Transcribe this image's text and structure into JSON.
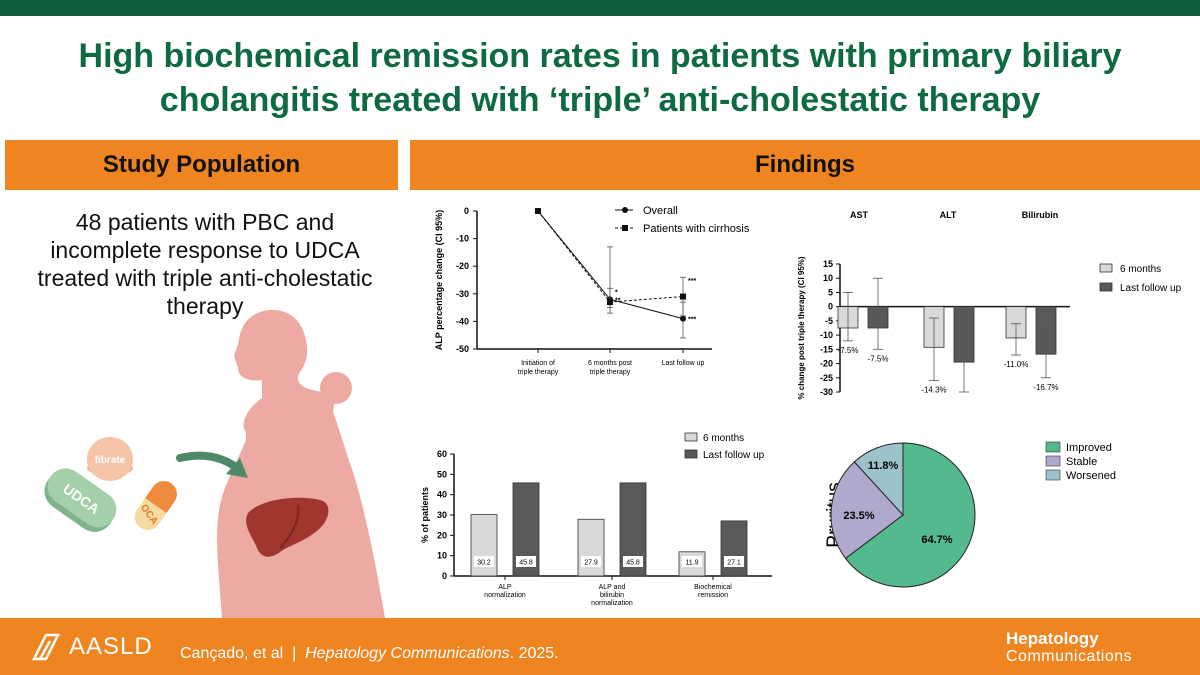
{
  "title": "High biochemical remission rates in patients with primary biliary cholangitis treated with ‘triple’ anti-cholestatic therapy",
  "left_banner": "Study Population",
  "right_banner": "Findings",
  "population_text": "48 patients with PBC and incomplete response to UDCA treated with triple anti-cholestatic therapy",
  "pills": {
    "fibrate": "fibrate",
    "udca": "UDCA",
    "oca": "OCA"
  },
  "colors": {
    "brand_green": "#0e6a40",
    "orange": "#ef8521",
    "bar_light": "#d9d9d9",
    "bar_dark": "#595959",
    "improved": "#55b98e",
    "stable": "#b1a9cd",
    "worsened": "#9cc3cc"
  },
  "footer": {
    "logo": "AASLD",
    "citation_authors": "Cançado, et al  |  ",
    "citation_journal": "Hepatology Communications",
    "citation_year": ". 2025.",
    "journal_line1": "Hepatology",
    "journal_line2": "Communications"
  },
  "chart_data": [
    {
      "type": "line",
      "ylabel": "ALP percentage change (CI 95%)",
      "categories": [
        "Initiation of triple therapy",
        "6 months post triple therapy",
        "Last follow up"
      ],
      "ylim": [
        -50,
        0
      ],
      "yticks": [
        0,
        -10,
        -20,
        -30,
        -40,
        -50
      ],
      "series": [
        {
          "name": "Overall",
          "values": [
            0,
            -32,
            -39
          ],
          "ci": [
            [
              0,
              0
            ],
            [
              -35,
              -13
            ],
            [
              -46,
              -33
            ]
          ],
          "annotations": [
            "",
            "**",
            "***"
          ]
        },
        {
          "name": "Patients with cirrhosis",
          "values": [
            0,
            -33,
            -31
          ],
          "ci": [
            [
              0,
              0
            ],
            [
              -37,
              -28
            ],
            [
              -38,
              -24
            ]
          ],
          "annotations": [
            "",
            "*",
            "***"
          ]
        }
      ]
    },
    {
      "type": "bar",
      "ylabel": "% change post triple therapy (CI 95%)",
      "categories": [
        "AST",
        "ALT",
        "Bilirubin"
      ],
      "ylim": [
        -30,
        15
      ],
      "yticks": [
        15,
        10,
        5,
        0,
        -5,
        -10,
        -15,
        -20,
        -25,
        -30
      ],
      "series": [
        {
          "name": "6 months",
          "values": [
            -7.5,
            -14.3,
            -11.0
          ],
          "labels": [
            "-7.5%",
            "-14.3%",
            "-11.0%"
          ],
          "ci": [
            [
              -12,
              5
            ],
            [
              -26,
              -4
            ],
            [
              -17,
              -6
            ]
          ]
        },
        {
          "name": "Last follow up",
          "values": [
            -7.5,
            -19.5,
            -16.7
          ],
          "labels": [
            "-7.5%",
            "",
            "-16.7%"
          ],
          "ci": [
            [
              -15,
              10
            ],
            [
              -30,
              -4
            ],
            [
              -25,
              -10
            ]
          ]
        }
      ]
    },
    {
      "type": "bar",
      "ylabel": "% of patients",
      "categories": [
        "ALP normalization",
        "ALP and bilirubin normalization",
        "Biochemical remission"
      ],
      "ylim": [
        0,
        60
      ],
      "yticks": [
        0,
        10,
        20,
        30,
        40,
        50,
        60
      ],
      "series": [
        {
          "name": "6 months",
          "values": [
            30.2,
            27.9,
            11.9
          ],
          "labels": [
            "30.2",
            "27.9",
            "11.9"
          ]
        },
        {
          "name": "Last follow up",
          "values": [
            45.8,
            45.8,
            27.1
          ],
          "labels": [
            "45.8",
            "45.8",
            "27.1"
          ]
        }
      ]
    },
    {
      "type": "pie",
      "ylabel": "Pruritus",
      "slices": [
        {
          "name": "Improved",
          "value": 64.7,
          "label": "64.7%"
        },
        {
          "name": "Stable",
          "value": 23.5,
          "label": "23.5%"
        },
        {
          "name": "Worsened",
          "value": 11.8,
          "label": "11.8%"
        }
      ]
    }
  ]
}
